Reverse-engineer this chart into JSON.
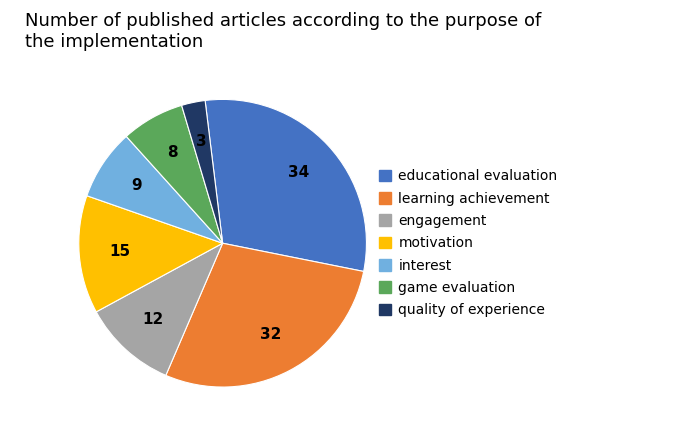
{
  "title": "Number of published articles according to the purpose of\nthe implementation",
  "labels": [
    "educational evaluation",
    "learning achievement",
    "engagement",
    "motivation",
    "interest",
    "game evaluation",
    "quality of experience"
  ],
  "values": [
    34,
    32,
    12,
    15,
    9,
    8,
    3
  ],
  "colors": [
    "#4472C4",
    "#ED7D31",
    "#A5A5A5",
    "#FFC000",
    "#70B0E0",
    "#5BA85A",
    "#203864"
  ],
  "title_fontsize": 13,
  "legend_fontsize": 10,
  "label_fontsize": 11,
  "startangle": 97,
  "pctdistance": 0.72
}
